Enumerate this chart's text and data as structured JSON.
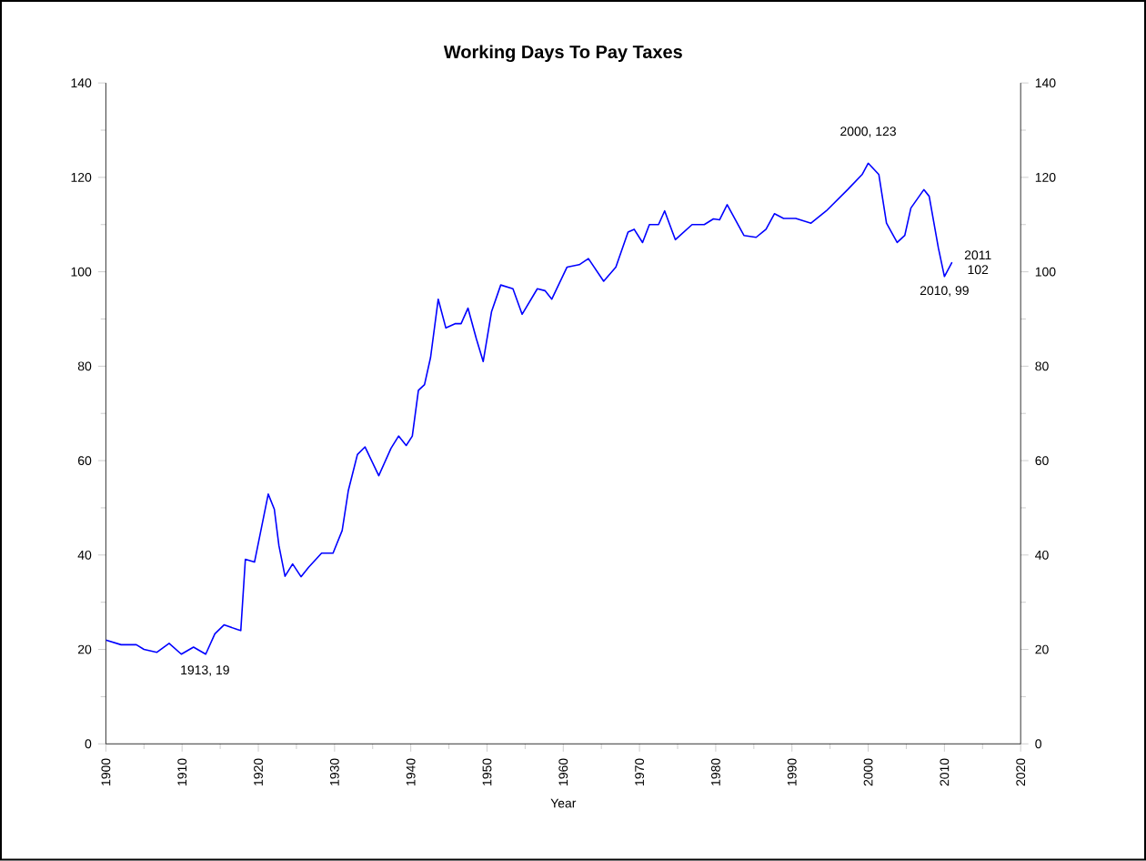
{
  "chart_data": {
    "type": "line",
    "title": "Working Days To Pay Taxes",
    "xlabel": "Year",
    "x": [
      1900,
      1902,
      1904,
      1905,
      1906.7,
      1908.3,
      1909.9,
      1911.5,
      1913.1,
      1914.3,
      1915.5,
      1917.3,
      1917.7,
      1918.3,
      1919.5,
      1921.3,
      1922.1,
      1922.7,
      1923.5,
      1924.5,
      1925.6,
      1926.6,
      1928.3,
      1929.8,
      1931,
      1931.8,
      1933,
      1934,
      1935.8,
      1937.4,
      1938.4,
      1939.4,
      1940.2,
      1941,
      1941.8,
      1942.6,
      1943.6,
      1944.6,
      1945.8,
      1946.6,
      1947.5,
      1948.6,
      1949.5,
      1950.6,
      1951.8,
      1953.4,
      1954.6,
      1956.6,
      1957.6,
      1958.5,
      1960.5,
      1962.1,
      1963.3,
      1965.3,
      1966.9,
      1968.5,
      1969.3,
      1970.4,
      1971.3,
      1972.5,
      1973.3,
      1974.7,
      1976.9,
      1978.5,
      1979.7,
      1980.5,
      1981.5,
      1983.7,
      1985.3,
      1986.6,
      1987.7,
      1988.9,
      1990.5,
      1992.5,
      1994.5,
      1997.3,
      1999.2,
      2000,
      2001.4,
      2002.4,
      2003.8,
      2004.8,
      2005.6,
      2007.3,
      2008,
      2009.2,
      2010,
      2011
    ],
    "values": [
      22,
      21,
      21,
      20,
      19.4,
      21.3,
      19,
      20.5,
      19,
      23.3,
      25.2,
      24.2,
      24,
      39.1,
      38.5,
      52.9,
      49.7,
      42,
      35.5,
      38.1,
      35.4,
      37.4,
      40.4,
      40.4,
      45.2,
      53.6,
      61.3,
      62.9,
      56.8,
      62.6,
      65.2,
      63.2,
      65.2,
      74.9,
      76.1,
      81.9,
      94.2,
      88.1,
      89,
      89,
      92.3,
      85.8,
      81,
      91.6,
      97.2,
      96.4,
      91,
      96.4,
      96,
      94.2,
      101,
      101.5,
      102.8,
      98,
      101,
      108.4,
      109,
      106.2,
      110,
      110,
      112.9,
      106.8,
      110,
      110,
      111.2,
      111,
      114.2,
      107.7,
      107.3,
      109,
      112.3,
      111.3,
      111.3,
      110.3,
      112.9,
      117.4,
      120.6,
      123,
      120.6,
      110.3,
      106.2,
      107.7,
      113.5,
      117.4,
      116,
      105.1,
      99,
      102
    ],
    "color": "#0000ff",
    "xlim": [
      1900,
      2020
    ],
    "xticks": [
      1900,
      1910,
      1920,
      1930,
      1940,
      1950,
      1960,
      1970,
      1980,
      1990,
      2000,
      2010,
      2020
    ],
    "ylim": [
      0,
      140
    ],
    "yticks": [
      0,
      20,
      40,
      60,
      80,
      100,
      120,
      140
    ],
    "y2lim": [
      0,
      140
    ],
    "y2ticks": [
      0,
      20,
      40,
      60,
      80,
      100,
      120,
      140
    ],
    "annotations": [
      {
        "text": "1913, 19",
        "x": 1913,
        "y": 19
      },
      {
        "text": "2000, 123",
        "x": 2000,
        "y": 123
      },
      {
        "text": "2010, 99",
        "x": 2010,
        "y": 99
      },
      {
        "text": "2011 102",
        "x": 2011,
        "y": 102
      }
    ],
    "grid": false
  }
}
